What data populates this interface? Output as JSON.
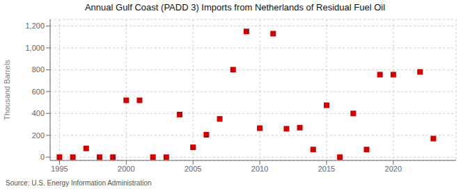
{
  "chart_data": {
    "type": "scatter",
    "title": "Annual Gulf Coast (PADD 3) Imports from Netherlands of Residual Fuel Oil",
    "ylabel": "Thousand Barrels",
    "source": "Source: U.S. Energy Information Administration",
    "color": "#cc0000",
    "marker": "square",
    "grid": true,
    "x": [
      1995,
      1996,
      1997,
      1998,
      1999,
      2000,
      2001,
      2002,
      2003,
      2004,
      2005,
      2006,
      2007,
      2008,
      2009,
      2010,
      2011,
      2012,
      2013,
      2014,
      2015,
      2016,
      2017,
      2018,
      2019,
      2020,
      2022,
      2023
    ],
    "values": [
      0,
      0,
      80,
      0,
      0,
      520,
      520,
      0,
      0,
      390,
      90,
      205,
      350,
      800,
      1150,
      265,
      1130,
      260,
      270,
      70,
      475,
      0,
      400,
      70,
      755,
      755,
      780,
      170
    ],
    "xlim": [
      1994.3,
      2024.7
    ],
    "ylim": [
      -30,
      1260
    ],
    "xticks": [
      1995,
      2000,
      2005,
      2010,
      2015,
      2020
    ],
    "yticks": [
      0,
      200,
      400,
      600,
      800,
      {
        "value": 1000,
        "label": "1,000"
      },
      {
        "value": 1200,
        "label": "1,200"
      }
    ]
  }
}
